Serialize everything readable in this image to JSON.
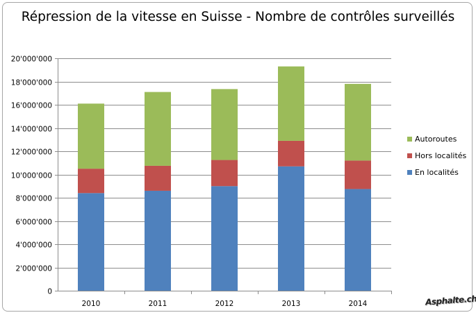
{
  "chart_data": {
    "type": "bar",
    "stacked": true,
    "title": "Répression  de la vitesse en Suisse - Nombre de contrôles surveillés",
    "categories": [
      "2010",
      "2011",
      "2012",
      "2013",
      "2014"
    ],
    "series": [
      {
        "name": "En localités",
        "color": "#4f81bd",
        "values": [
          8400000,
          8600000,
          9000000,
          10700000,
          8750000
        ]
      },
      {
        "name": "Hors localités",
        "color": "#c0504d",
        "values": [
          2100000,
          2150000,
          2250000,
          2200000,
          2450000
        ]
      },
      {
        "name": "Autoroutes",
        "color": "#9bbb59",
        "values": [
          5600000,
          6350000,
          6100000,
          6400000,
          6600000
        ]
      }
    ],
    "legend_order": [
      "Autoroutes",
      "Hors localités",
      "En localités"
    ],
    "legend_position": "right",
    "ylim": [
      0,
      20000000
    ],
    "yticks": [
      0,
      2000000,
      4000000,
      6000000,
      8000000,
      10000000,
      12000000,
      14000000,
      16000000,
      18000000,
      20000000
    ],
    "ytick_labels": [
      "0",
      "2'000'000",
      "4'000'000",
      "6'000'000",
      "8'000'000",
      "10'000'000",
      "12'000'000",
      "14'000'000",
      "16'000'000",
      "18'000'000",
      "20'000'000"
    ],
    "grid": true,
    "xlabel": "",
    "ylabel": ""
  },
  "watermark": "Asphalte.ch"
}
